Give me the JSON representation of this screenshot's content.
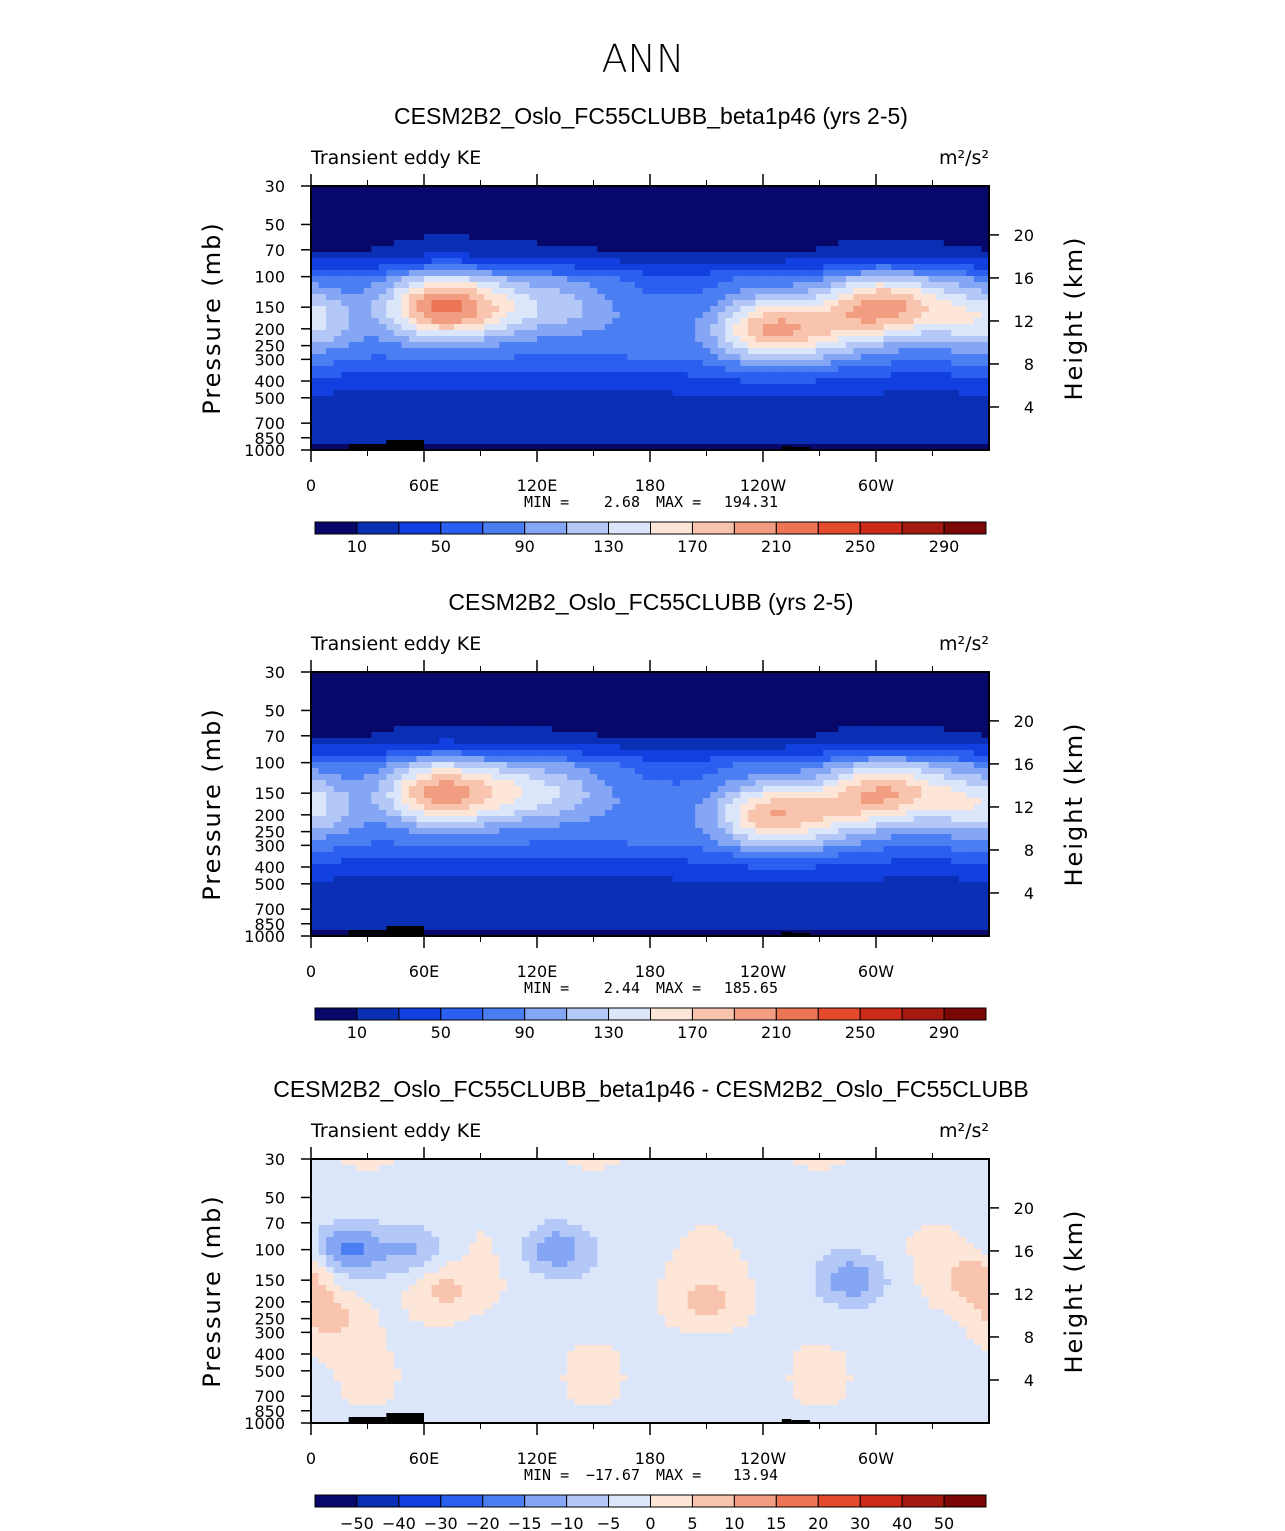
{
  "figure_title": "ANN",
  "colors": {
    "abs_scale": [
      "#08086b",
      "#0a2fb5",
      "#1240e0",
      "#2a5ff0",
      "#4a7ef2",
      "#85a6f5",
      "#b3c8f7",
      "#dbe6fb",
      "#fde6d7",
      "#f8c4ad",
      "#f29c82",
      "#ec7556",
      "#e44a2c",
      "#cc2b1a",
      "#a51a10",
      "#7a0606"
    ],
    "diff_scale": [
      "#08086b",
      "#0a2fb5",
      "#1240e0",
      "#2a5ff0",
      "#4a7ef2",
      "#85a6f5",
      "#b3c8f7",
      "#dbe6fb",
      "#fde6d7",
      "#f8c4ad",
      "#f29c82",
      "#ec7556",
      "#e44a2c",
      "#cc2b1a",
      "#a51a10",
      "#7a0606"
    ]
  },
  "chart_data": [
    {
      "type": "heatmap",
      "title": "CESM2B2_Oslo_FC55CLUBB_beta1p46 (yrs 2-5)",
      "subtitle_left": "Transient eddy KE",
      "units": "m²/s²",
      "ylabel": "Pressure (mb)",
      "ylabel_right": "Height (km)",
      "x_ticks": [
        "0",
        "60E",
        "120E",
        "180",
        "120W",
        "60W"
      ],
      "y_ticks": [
        "30",
        "50",
        "70",
        "100",
        "150",
        "200",
        "250",
        "300",
        "400",
        "500",
        "700",
        "850",
        "1000"
      ],
      "y_ticks_right": [
        "20",
        "16",
        "12",
        "8",
        "4"
      ],
      "min_label": "MIN =",
      "min_value": "2.68",
      "max_label": "MAX =",
      "max_value": "194.31",
      "colorbar_labels": [
        "10",
        "50",
        "90",
        "130",
        "170",
        "210",
        "250",
        "290"
      ],
      "colorbar_levels": [
        0,
        10,
        30,
        50,
        70,
        90,
        110,
        130,
        150,
        170,
        190,
        210,
        230,
        250,
        270,
        290
      ],
      "features": [
        {
          "lon": 0,
          "p": 180,
          "v": 130
        },
        {
          "lon": 65,
          "p": 150,
          "v": 190
        },
        {
          "lon": 95,
          "p": 150,
          "v": 130
        },
        {
          "lon": 135,
          "p": 150,
          "v": 110
        },
        {
          "lon": 180,
          "p": 200,
          "v": 80
        },
        {
          "lon": 240,
          "p": 200,
          "v": 170
        },
        {
          "lon": 270,
          "p": 200,
          "v": 120
        },
        {
          "lon": 300,
          "p": 150,
          "v": 175
        },
        {
          "lon": 330,
          "p": 150,
          "v": 110
        }
      ]
    },
    {
      "type": "heatmap",
      "title": "CESM2B2_Oslo_FC55CLUBB (yrs 2-5)",
      "subtitle_left": "Transient eddy KE",
      "units": "m²/s²",
      "ylabel": "Pressure (mb)",
      "ylabel_right": "Height (km)",
      "x_ticks": [
        "0",
        "60E",
        "120E",
        "180",
        "120W",
        "60W"
      ],
      "y_ticks": [
        "30",
        "50",
        "70",
        "100",
        "150",
        "200",
        "250",
        "300",
        "400",
        "500",
        "700",
        "850",
        "1000"
      ],
      "y_ticks_right": [
        "20",
        "16",
        "12",
        "8",
        "4"
      ],
      "min_label": "MIN =",
      "min_value": "2.44",
      "max_label": "MAX =",
      "max_value": "185.65",
      "colorbar_labels": [
        "10",
        "50",
        "90",
        "130",
        "170",
        "210",
        "250",
        "290"
      ],
      "colorbar_levels": [
        0,
        10,
        30,
        50,
        70,
        90,
        110,
        130,
        150,
        170,
        190,
        210,
        230,
        250,
        270,
        290
      ],
      "features": [
        {
          "lon": 0,
          "p": 180,
          "v": 130
        },
        {
          "lon": 65,
          "p": 150,
          "v": 185
        },
        {
          "lon": 100,
          "p": 150,
          "v": 130
        },
        {
          "lon": 135,
          "p": 150,
          "v": 110
        },
        {
          "lon": 180,
          "p": 200,
          "v": 80
        },
        {
          "lon": 240,
          "p": 200,
          "v": 165
        },
        {
          "lon": 270,
          "p": 200,
          "v": 120
        },
        {
          "lon": 300,
          "p": 150,
          "v": 165
        },
        {
          "lon": 330,
          "p": 150,
          "v": 110
        }
      ]
    },
    {
      "type": "heatmap",
      "title": "CESM2B2_Oslo_FC55CLUBB_beta1p46 - CESM2B2_Oslo_FC55CLUBB",
      "subtitle_left": "Transient eddy KE",
      "units": "m²/s²",
      "ylabel": "Pressure (mb)",
      "ylabel_right": "Height (km)",
      "x_ticks": [
        "0",
        "60E",
        "120E",
        "180",
        "120W",
        "60W"
      ],
      "y_ticks": [
        "30",
        "50",
        "70",
        "100",
        "150",
        "200",
        "250",
        "300",
        "400",
        "500",
        "700",
        "850",
        "1000"
      ],
      "y_ticks_right": [
        "20",
        "16",
        "12",
        "8",
        "4"
      ],
      "min_label": "MIN =",
      "min_value": "−17.67",
      "max_label": "MAX =",
      "max_value": "13.94",
      "colorbar_labels": [
        "−50",
        "−40",
        "−30",
        "−20",
        "−15",
        "−10",
        "−5",
        "0",
        "5",
        "10",
        "15",
        "20",
        "30",
        "40",
        "50"
      ],
      "colorbar_levels": [
        -999,
        -50,
        -40,
        -30,
        -20,
        -15,
        -10,
        -5,
        0,
        5,
        10,
        15,
        20,
        30,
        40,
        50
      ],
      "features": [
        {
          "lon": 20,
          "p": 100,
          "v": -14
        },
        {
          "lon": 55,
          "p": 100,
          "v": -9
        },
        {
          "lon": 130,
          "p": 100,
          "v": -12
        },
        {
          "lon": 10,
          "p": 250,
          "v": 8
        },
        {
          "lon": 70,
          "p": 170,
          "v": 7
        },
        {
          "lon": 210,
          "p": 200,
          "v": 8
        },
        {
          "lon": 288,
          "p": 150,
          "v": -12
        },
        {
          "lon": 355,
          "p": 150,
          "v": 10
        }
      ]
    }
  ]
}
